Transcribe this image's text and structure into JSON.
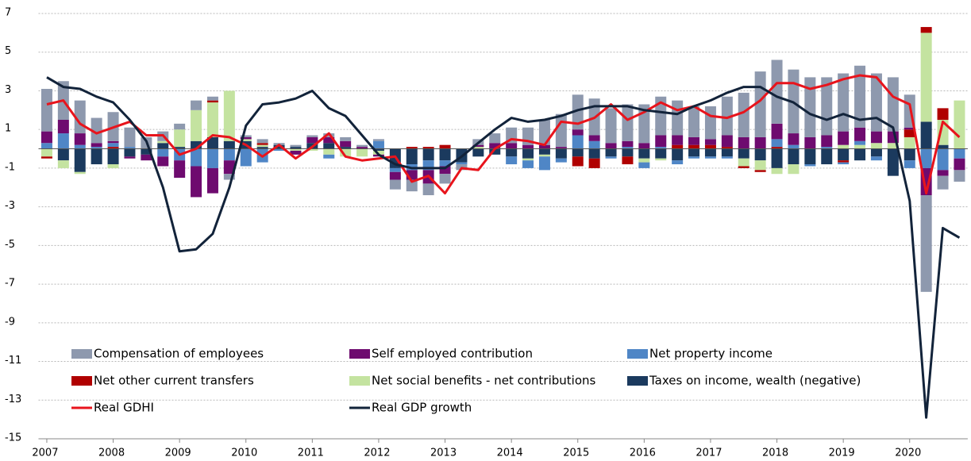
{
  "chart_data": {
    "type": "bar",
    "categories": [
      "2007",
      null,
      null,
      null,
      "2008",
      null,
      null,
      null,
      "2009",
      null,
      null,
      null,
      "2010",
      null,
      null,
      null,
      "2011",
      null,
      null,
      null,
      "2012",
      null,
      null,
      null,
      "2013",
      null,
      null,
      null,
      "2014",
      null,
      null,
      null,
      "2015",
      null,
      null,
      null,
      "2016",
      null,
      null,
      null,
      "2017",
      null,
      null,
      null,
      "2018",
      null,
      null,
      null,
      "2019",
      null,
      null,
      null,
      "2020",
      null,
      null,
      null
    ],
    "series": [
      {
        "name": "Compensation of employees",
        "color": "#8e99ae",
        "values": [
          2.2,
          2.0,
          1.7,
          1.3,
          1.5,
          1.0,
          0.6,
          0.5,
          0.3,
          0.5,
          0.2,
          -0.3,
          0.1,
          0.2,
          0.1,
          0.1,
          0.1,
          0.2,
          0.2,
          0.1,
          0.1,
          -0.5,
          -0.6,
          -0.6,
          -0.5,
          -0.3,
          0.3,
          0.5,
          0.8,
          0.9,
          1.3,
          1.7,
          1.8,
          1.9,
          1.8,
          1.9,
          2.0,
          2.0,
          1.8,
          1.6,
          1.7,
          2.0,
          2.3,
          3.4,
          3.3,
          3.3,
          3.1,
          3.0,
          3.0,
          3.2,
          3.0,
          2.8,
          1.7,
          -5.0,
          -0.7,
          -0.6
        ]
      },
      {
        "name": "Self employed contribution",
        "color": "#6e0b6f",
        "values": [
          0.6,
          0.7,
          0.6,
          0.2,
          0.1,
          -0.1,
          -0.3,
          -0.5,
          -0.9,
          -1.6,
          -1.3,
          -0.7,
          0.1,
          0.0,
          0.0,
          -0.2,
          0.3,
          0.3,
          0.3,
          0.1,
          -0.1,
          -0.4,
          -0.5,
          -0.7,
          -0.4,
          0.0,
          0.1,
          0.3,
          0.3,
          0.2,
          0.2,
          0.1,
          0.3,
          0.3,
          0.3,
          0.3,
          0.3,
          0.6,
          0.5,
          0.4,
          0.3,
          0.6,
          0.6,
          0.6,
          0.8,
          0.6,
          0.6,
          0.6,
          0.7,
          0.7,
          0.6,
          0.6,
          0.1,
          -1.4,
          -0.3,
          -0.6
        ]
      },
      {
        "name": "Net property income",
        "color": "#4f86c6",
        "values": [
          0.3,
          0.8,
          0.2,
          0.1,
          0.2,
          0.1,
          0.0,
          -0.4,
          -0.6,
          -0.9,
          -1.0,
          -0.6,
          -0.9,
          -0.7,
          -0.1,
          0.0,
          0.0,
          -0.2,
          0.0,
          0.0,
          0.4,
          -0.2,
          -0.3,
          -0.5,
          -0.3,
          -0.1,
          0.0,
          0.0,
          -0.4,
          -0.4,
          -0.7,
          -0.2,
          0.7,
          0.4,
          -0.1,
          0.1,
          -0.3,
          0.1,
          -0.2,
          -0.1,
          -0.1,
          -0.1,
          0.0,
          0.0,
          0.4,
          0.2,
          -0.1,
          0.1,
          -0.1,
          0.2,
          -0.2,
          0.0,
          -0.4,
          -1.0,
          -1.1,
          -0.5
        ]
      },
      {
        "name": "Net other current transfers",
        "color": "#b00000",
        "values": [
          -0.1,
          0,
          0,
          0,
          0.1,
          0,
          0,
          0,
          0,
          0,
          0.1,
          0,
          0,
          0.1,
          0,
          0,
          0,
          0,
          0,
          0,
          0,
          0,
          0.1,
          0.1,
          0.2,
          0,
          0,
          0,
          0,
          0,
          0,
          0,
          -0.5,
          -0.5,
          0,
          -0.4,
          0,
          0,
          0.2,
          0.2,
          0.2,
          0.1,
          -0.1,
          -0.1,
          0.1,
          0,
          0,
          0,
          -0.1,
          0,
          0,
          0,
          0.4,
          0.3,
          0.6,
          0
        ]
      },
      {
        "name": "Net social benefits - net contributions",
        "color": "#c4e3a0",
        "values": [
          -0.4,
          -0.4,
          -0.1,
          0,
          -0.2,
          0,
          0,
          0.1,
          0.9,
          1.6,
          1.8,
          2.6,
          0.1,
          0.1,
          0.0,
          -0.1,
          -0.1,
          -0.3,
          -0.4,
          -0.4,
          -0.2,
          0,
          0,
          0,
          0,
          0,
          0.1,
          0,
          0,
          -0.1,
          -0.1,
          0,
          0,
          0,
          0,
          0,
          -0.2,
          -0.1,
          0,
          0,
          0,
          0,
          -0.4,
          -0.5,
          -0.3,
          -0.5,
          0,
          0,
          0.2,
          0.2,
          0.3,
          0.3,
          0.6,
          4.6,
          1.3,
          2.5
        ]
      },
      {
        "name": "Taxes on income, wealth (negative)",
        "color": "#1b3a5e",
        "values": [
          0,
          -0.6,
          -1.2,
          -0.8,
          -0.8,
          -0.4,
          -0.3,
          0.3,
          0.1,
          0.4,
          0.6,
          0.4,
          0.4,
          0.1,
          0.2,
          0.1,
          0.3,
          0.3,
          0.1,
          0.0,
          -0.1,
          -1.0,
          -0.8,
          -0.6,
          -0.6,
          -0.7,
          -0.4,
          -0.3,
          -0.4,
          -0.5,
          -0.3,
          -0.5,
          -0.4,
          -0.5,
          -0.4,
          -0.4,
          -0.5,
          -0.5,
          -0.6,
          -0.4,
          -0.4,
          -0.4,
          -0.5,
          -0.6,
          -1.0,
          -0.8,
          -0.8,
          -0.8,
          -0.6,
          -0.6,
          -0.4,
          -1.4,
          -0.6,
          1.4,
          0.2,
          0
        ]
      },
      {
        "name": "Real GDHI",
        "type": "line",
        "color": "#e8141c",
        "values": [
          2.3,
          2.5,
          1.3,
          0.8,
          1.1,
          1.4,
          0.7,
          0.7,
          -0.3,
          0.0,
          0.7,
          0.6,
          0.2,
          -0.4,
          0.2,
          -0.5,
          0.1,
          0.8,
          -0.4,
          -0.6,
          -0.5,
          -0.4,
          -1.7,
          -1.4,
          -2.3,
          -1.0,
          -1.1,
          0.0,
          0.5,
          0.4,
          0.2,
          1.4,
          1.3,
          1.6,
          2.3,
          1.5,
          1.9,
          2.4,
          2.0,
          2.2,
          1.7,
          1.6,
          1.9,
          2.5,
          3.4,
          3.4,
          3.1,
          3.3,
          3.6,
          3.8,
          3.7,
          2.7,
          2.3,
          -2.3,
          1.4,
          0.6
        ]
      },
      {
        "name": "Real GDP growth",
        "type": "line",
        "color": "#12233a",
        "values": [
          3.7,
          3.2,
          3.1,
          2.7,
          2.4,
          1.5,
          0.4,
          -2.0,
          -5.3,
          -5.2,
          -4.4,
          -2.0,
          1.2,
          2.3,
          2.4,
          2.6,
          3.0,
          2.1,
          1.7,
          0.7,
          -0.3,
          -0.8,
          -1.0,
          -1.0,
          -1.0,
          -0.4,
          0.3,
          1.0,
          1.6,
          1.4,
          1.5,
          1.7,
          2.0,
          2.2,
          2.2,
          2.2,
          2.0,
          1.9,
          1.8,
          2.2,
          2.5,
          2.9,
          3.2,
          3.2,
          2.7,
          2.4,
          1.8,
          1.5,
          1.8,
          1.5,
          1.6,
          1.1,
          -2.7,
          -13.9,
          -4.1,
          -4.6
        ]
      }
    ],
    "ylim": [
      -15,
      7
    ],
    "yticks": [
      -15,
      -13,
      -11,
      -9,
      -7,
      -5,
      -3,
      -1,
      1,
      3,
      5,
      7
    ],
    "grid": true,
    "legend": "lower left"
  }
}
